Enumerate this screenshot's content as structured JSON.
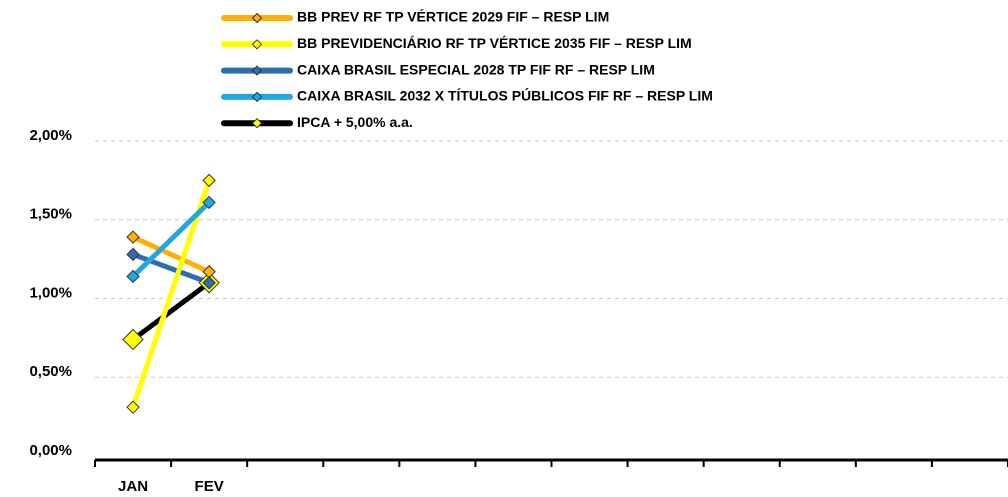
{
  "chart_data": {
    "type": "line",
    "categories": [
      "JAN",
      "FEV",
      null,
      null,
      null,
      null,
      null,
      null,
      null,
      null,
      null,
      null
    ],
    "series": [
      {
        "name": "BB PREV RF TP VÉRTICE 2029 FIF – RESP LIM",
        "color": "#ffb000",
        "values": [
          1.39,
          1.17,
          null,
          null,
          null,
          null,
          null,
          null,
          null,
          null,
          null,
          null
        ]
      },
      {
        "name": "BB PREVIDENCIÁRIO RF TP VÉRTICE 2035 FIF – RESP LIM",
        "color": "#ffff00",
        "values": [
          0.31,
          1.75,
          null,
          null,
          null,
          null,
          null,
          null,
          null,
          null,
          null,
          null
        ]
      },
      {
        "name": "CAIXA BRASIL ESPECIAL 2028 TP FIF RF – RESP LIM",
        "color": "#2e6db4",
        "values": [
          1.28,
          1.1,
          null,
          null,
          null,
          null,
          null,
          null,
          null,
          null,
          null,
          null
        ]
      },
      {
        "name": "CAIXA BRASIL 2032 X TÍTULOS PÚBLICOS FIF RF – RESP LIM",
        "color": "#1fa8e0",
        "values": [
          1.14,
          1.61,
          null,
          null,
          null,
          null,
          null,
          null,
          null,
          null,
          null,
          null
        ]
      },
      {
        "name": "IPCA + 5,00% a.a.",
        "color": "#000000",
        "marker_color": "#ffff00",
        "values": [
          0.74,
          1.1,
          null,
          null,
          null,
          null,
          null,
          null,
          null,
          null,
          null,
          null
        ]
      }
    ],
    "ylim": [
      0,
      2
    ],
    "yticks": [
      {
        "value": 0,
        "label": "0,00%"
      },
      {
        "value": 0.5,
        "label": "0,50%"
      },
      {
        "value": 1,
        "label": "1,00%"
      },
      {
        "value": 1.5,
        "label": "1,50%"
      },
      {
        "value": 2,
        "label": "2,00%"
      }
    ],
    "grid": true,
    "legend": "top"
  }
}
